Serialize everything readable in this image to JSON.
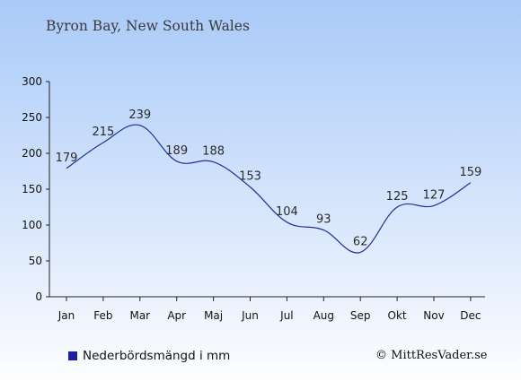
{
  "title": "Byron Bay, New South Wales",
  "legend_label": "Nederbördsmängd i mm",
  "copyright": "© MittResVader.se",
  "colors": {
    "line": "#1f2f9a",
    "legend_swatch": "#1f1f9e"
  },
  "chart_data": {
    "type": "line",
    "categories": [
      "Jan",
      "Feb",
      "Mar",
      "Apr",
      "Maj",
      "Jun",
      "Jul",
      "Aug",
      "Sep",
      "Okt",
      "Nov",
      "Dec"
    ],
    "series": [
      {
        "name": "Nederbördsmängd i mm",
        "values": [
          179,
          215,
          239,
          189,
          188,
          153,
          104,
          93,
          62,
          125,
          127,
          159
        ]
      }
    ],
    "ylim": [
      0,
      300
    ],
    "yticks": [
      0,
      50,
      100,
      150,
      200,
      250,
      300
    ],
    "grid": false,
    "legend": "bottom-left"
  }
}
